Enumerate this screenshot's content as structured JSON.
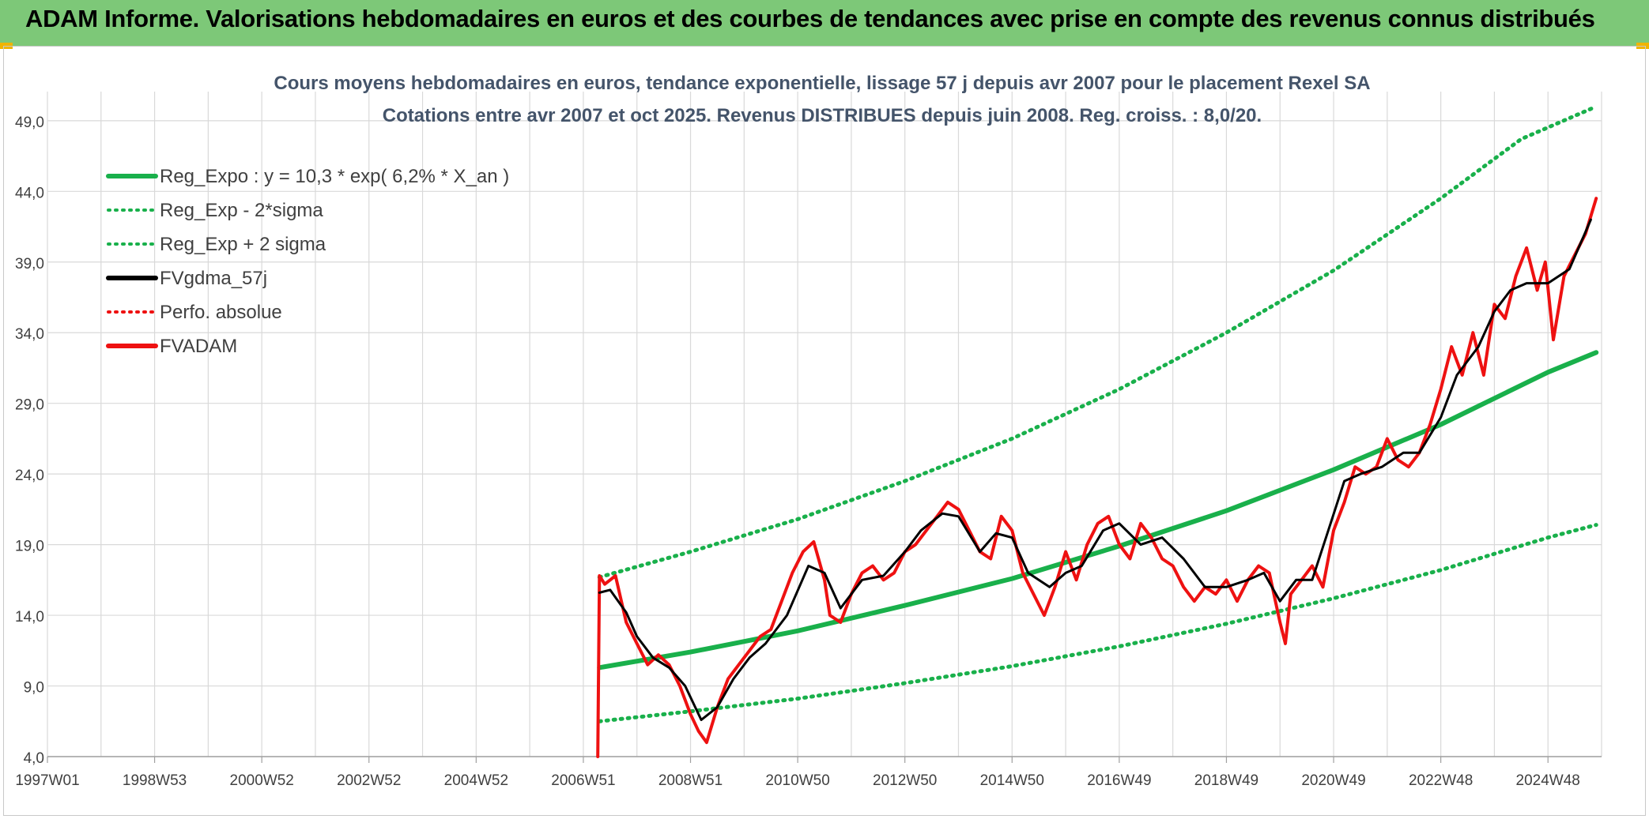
{
  "header": {
    "title": "ADAM Informe. Valorisations hebdomadaires en euros et des courbes de tendances avec prise en compte des revenus connus distribués"
  },
  "colors": {
    "header_bg": "#7dc878",
    "reg_green": "#19b04b",
    "fvgdma": "#000000",
    "fvadam": "#ee1111",
    "grid": "#d9d9d9",
    "accent_corner": "#f0b400"
  },
  "chart_data": {
    "type": "line",
    "title": "Cours moyens hebdomadaires en euros, tendance exponentielle, lissage 57 j depuis avr 2007 pour le placement Rexel SA",
    "subtitle": "Cotations entre avr 2007 et oct 2025. Revenus DISTRIBUES depuis juin 2008. Reg. croiss. : 8,0/20.",
    "xlabel": "",
    "ylabel": "",
    "xlim": [
      1997.0,
      2026.0
    ],
    "ylim": [
      4.0,
      50.5
    ],
    "y_ticks": [
      "4,0",
      "9,0",
      "14,0",
      "19,0",
      "24,0",
      "29,0",
      "34,0",
      "39,0",
      "44,0",
      "49,0"
    ],
    "x_ticks": [
      "1997W01",
      "1998W53",
      "2000W52",
      "2002W52",
      "2004W52",
      "2006W51",
      "2008W51",
      "2010W50",
      "2012W50",
      "2014W50",
      "2016W49",
      "2018W49",
      "2020W49",
      "2022W48",
      "2024W48"
    ],
    "grid": true,
    "legend_position": "top-left",
    "legend": [
      {
        "label": "Reg_Expo : y = 10,3 * exp( 6,2% *  X_an )",
        "style": "solid",
        "color": "#19b04b"
      },
      {
        "label": "Reg_Exp - 2*sigma",
        "style": "dotted",
        "color": "#19b04b"
      },
      {
        "label": "Reg_Exp + 2 sigma",
        "style": "dotted",
        "color": "#19b04b"
      },
      {
        "label": "FVgdma_57j",
        "style": "solid",
        "color": "#000000"
      },
      {
        "label": "Perfo. absolue",
        "style": "dotted",
        "color": "#ee1111"
      },
      {
        "label": "FVADAM",
        "style": "solid",
        "color": "#ee1111"
      }
    ],
    "series": [
      {
        "name": "Reg_Expo : y = 10,3 * exp( 6,2% *  X_an )",
        "x": [
          2007.3,
          2009,
          2011,
          2013,
          2015,
          2017,
          2019,
          2021,
          2023,
          2025,
          2025.9
        ],
        "y": [
          10.3,
          11.4,
          12.9,
          14.7,
          16.6,
          18.9,
          21.4,
          24.3,
          27.5,
          31.2,
          32.6
        ]
      },
      {
        "name": "Reg_Exp - 2*sigma",
        "x": [
          2007.3,
          2009,
          2011,
          2013,
          2015,
          2017,
          2019,
          2021,
          2023,
          2025,
          2025.9
        ],
        "y": [
          6.5,
          7.2,
          8.1,
          9.2,
          10.4,
          11.8,
          13.4,
          15.2,
          17.2,
          19.5,
          20.4
        ]
      },
      {
        "name": "Reg_Exp + 2 sigma",
        "x": [
          2007.3,
          2009,
          2011,
          2013,
          2015,
          2017,
          2019,
          2021,
          2023,
          2024.5,
          2025.9
        ],
        "y": [
          16.7,
          18.5,
          20.8,
          23.5,
          26.5,
          30.0,
          34.0,
          38.4,
          43.5,
          47.7,
          50.0
        ]
      },
      {
        "name": "FVgdma_57j",
        "x": [
          2007.3,
          2007.5,
          2007.8,
          2008.0,
          2008.3,
          2008.6,
          2008.9,
          2009.2,
          2009.5,
          2009.8,
          2010.1,
          2010.4,
          2010.8,
          2011.2,
          2011.5,
          2011.8,
          2012.2,
          2012.6,
          2013.0,
          2013.3,
          2013.7,
          2014.0,
          2014.4,
          2014.7,
          2015.0,
          2015.3,
          2015.7,
          2016.0,
          2016.3,
          2016.7,
          2017.0,
          2017.4,
          2017.8,
          2018.2,
          2018.6,
          2019.0,
          2019.4,
          2019.7,
          2020.0,
          2020.3,
          2020.6,
          2020.9,
          2021.2,
          2021.5,
          2021.9,
          2022.3,
          2022.6,
          2023.0,
          2023.3,
          2023.7,
          2024.0,
          2024.3,
          2024.6,
          2025.0,
          2025.4,
          2025.8
        ],
        "y": [
          15.6,
          15.8,
          14.2,
          12.5,
          11.0,
          10.3,
          9.0,
          6.6,
          7.5,
          9.5,
          11.0,
          12.0,
          14.0,
          17.5,
          17.0,
          14.5,
          16.5,
          16.8,
          18.5,
          20.0,
          21.2,
          21.0,
          18.5,
          19.8,
          19.5,
          17.0,
          16.0,
          17.0,
          17.5,
          20.0,
          20.5,
          19.0,
          19.5,
          18.0,
          16.0,
          16.0,
          16.5,
          17.0,
          15.0,
          16.5,
          16.5,
          20.0,
          23.5,
          24.0,
          24.5,
          25.5,
          25.5,
          28.0,
          31.0,
          33.0,
          35.5,
          37.0,
          37.5,
          37.5,
          38.5,
          42.0
        ]
      },
      {
        "name": "FVADAM",
        "x": [
          2007.27,
          2007.3,
          2007.4,
          2007.6,
          2007.8,
          2008.0,
          2008.2,
          2008.4,
          2008.6,
          2008.8,
          2009.0,
          2009.15,
          2009.3,
          2009.5,
          2009.7,
          2009.9,
          2010.1,
          2010.3,
          2010.5,
          2010.7,
          2010.9,
          2011.1,
          2011.3,
          2011.5,
          2011.6,
          2011.8,
          2012.0,
          2012.2,
          2012.4,
          2012.6,
          2012.8,
          2013.0,
          2013.2,
          2013.4,
          2013.6,
          2013.8,
          2014.0,
          2014.2,
          2014.4,
          2014.6,
          2014.8,
          2015.0,
          2015.2,
          2015.4,
          2015.6,
          2015.8,
          2016.0,
          2016.2,
          2016.4,
          2016.6,
          2016.8,
          2017.0,
          2017.2,
          2017.4,
          2017.6,
          2017.8,
          2018.0,
          2018.2,
          2018.4,
          2018.6,
          2018.8,
          2019.0,
          2019.2,
          2019.4,
          2019.6,
          2019.8,
          2020.0,
          2020.1,
          2020.2,
          2020.4,
          2020.6,
          2020.8,
          2021.0,
          2021.2,
          2021.4,
          2021.6,
          2021.8,
          2022.0,
          2022.2,
          2022.4,
          2022.6,
          2022.8,
          2023.0,
          2023.2,
          2023.4,
          2023.6,
          2023.8,
          2024.0,
          2024.2,
          2024.4,
          2024.6,
          2024.8,
          2024.95,
          2025.1,
          2025.3,
          2025.5,
          2025.7,
          2025.9
        ],
        "y": [
          4.0,
          16.8,
          16.2,
          16.8,
          13.5,
          12.0,
          10.5,
          11.2,
          10.5,
          9.0,
          7.0,
          5.8,
          5.0,
          7.5,
          9.5,
          10.5,
          11.5,
          12.5,
          13.0,
          15.0,
          17.0,
          18.5,
          19.2,
          16.5,
          14.0,
          13.5,
          15.5,
          17.0,
          17.5,
          16.5,
          17.0,
          18.5,
          19.0,
          20.0,
          21.0,
          22.0,
          21.5,
          20.0,
          18.5,
          18.0,
          21.0,
          20.0,
          17.0,
          15.5,
          14.0,
          16.0,
          18.5,
          16.5,
          19.0,
          20.5,
          21.0,
          19.0,
          18.0,
          20.5,
          19.5,
          18.0,
          17.5,
          16.0,
          15.0,
          16.0,
          15.5,
          16.5,
          15.0,
          16.5,
          17.5,
          17.0,
          13.5,
          12.0,
          15.5,
          16.5,
          17.5,
          16.0,
          20.0,
          22.0,
          24.5,
          24.0,
          24.5,
          26.5,
          25.0,
          24.5,
          25.5,
          27.5,
          30.0,
          33.0,
          31.0,
          34.0,
          31.0,
          36.0,
          35.0,
          38.0,
          40.0,
          37.0,
          39.0,
          33.5,
          38.0,
          39.5,
          41.0,
          43.5
        ]
      }
    ]
  }
}
